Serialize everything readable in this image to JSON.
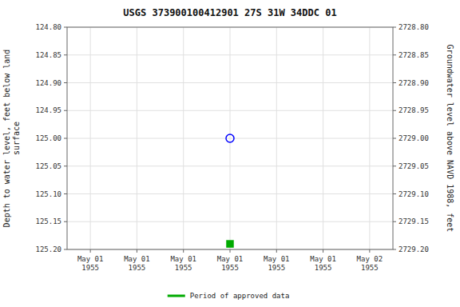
{
  "chart_data": {
    "type": "scatter",
    "title": "USGS 373900100412901 27S 31W 34DDC 01",
    "ylabel": "Depth to water level, feet below land\nsurface",
    "y2label": "Groundwater level above NAVD 1988, feet",
    "categories": [
      "May 01\n1955",
      "May 01\n1955",
      "May 01\n1955",
      "May 01\n1955",
      "May 01\n1955",
      "May 01\n1955",
      "May 02\n1955"
    ],
    "series": [
      {
        "color": "blue",
        "marker": "circle-open",
        "values": [
          null,
          null,
          null,
          125.0,
          null,
          null,
          null
        ]
      },
      {
        "name": "Period of approved data",
        "color": "#00aa00",
        "marker": "square",
        "values": [
          null,
          null,
          null,
          125.19,
          null,
          null,
          null
        ]
      }
    ],
    "ylim": [
      125.2,
      124.8
    ],
    "yticks": [
      {
        "value": 124.8,
        "label": "124.80"
      },
      {
        "value": 124.85,
        "label": "124.85"
      },
      {
        "value": 124.9,
        "label": "124.90"
      },
      {
        "value": 124.95,
        "label": "124.95"
      },
      {
        "value": 125.0,
        "label": "125.00"
      },
      {
        "value": 125.05,
        "label": "125.05"
      },
      {
        "value": 125.1,
        "label": "125.10"
      },
      {
        "value": 125.15,
        "label": "125.15"
      },
      {
        "value": 125.2,
        "label": "125.20"
      }
    ],
    "y2lim": [
      2729.2,
      2728.8
    ],
    "y2ticks": [
      {
        "value": 2729.2,
        "label": "2729.20"
      },
      {
        "value": 2729.15,
        "label": "2729.15"
      },
      {
        "value": 2729.1,
        "label": "2729.10"
      },
      {
        "value": 2729.05,
        "label": "2729.05"
      },
      {
        "value": 2729.0,
        "label": "2729.00"
      },
      {
        "value": 2728.95,
        "label": "2728.95"
      },
      {
        "value": 2728.9,
        "label": "2728.90"
      },
      {
        "value": 2728.85,
        "label": "2728.85"
      },
      {
        "value": 2728.8,
        "label": "2728.80"
      }
    ],
    "grid": true,
    "legend": "bottom"
  }
}
